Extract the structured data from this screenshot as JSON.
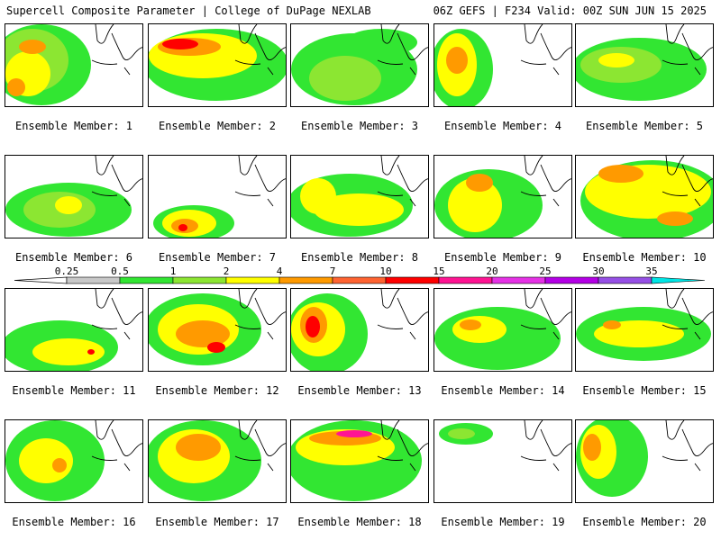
{
  "header": {
    "title_left": "Supercell Composite Parameter | College of DuPage NEXLAB",
    "title_right": "06Z GEFS | F234 Valid: 00Z SUN JUN 15 2025"
  },
  "colorbar": {
    "labels": [
      "0.25",
      "0.5",
      "1",
      "2",
      "4",
      "7",
      "10",
      "15",
      "20",
      "25",
      "30",
      "35"
    ],
    "colors": [
      "#c8c8c8",
      "#32e632",
      "#8ce632",
      "#ffff00",
      "#ff9a00",
      "#ff6432",
      "#ff0000",
      "#ff1493",
      "#e632e6",
      "#b400e6",
      "#9650e6",
      "#00e6e6"
    ]
  },
  "panels": [
    {
      "label": "Ensemble Member: 1"
    },
    {
      "label": "Ensemble Member: 2"
    },
    {
      "label": "Ensemble Member: 3"
    },
    {
      "label": "Ensemble Member: 4"
    },
    {
      "label": "Ensemble Member: 5"
    },
    {
      "label": "Ensemble Member: 6"
    },
    {
      "label": "Ensemble Member: 7"
    },
    {
      "label": "Ensemble Member: 8"
    },
    {
      "label": "Ensemble Member: 9"
    },
    {
      "label": "Ensemble Member: 10"
    },
    {
      "label": "Ensemble Member: 11"
    },
    {
      "label": "Ensemble Member: 12"
    },
    {
      "label": "Ensemble Member: 13"
    },
    {
      "label": "Ensemble Member: 14"
    },
    {
      "label": "Ensemble Member: 15"
    },
    {
      "label": "Ensemble Member: 16"
    },
    {
      "label": "Ensemble Member: 17"
    },
    {
      "label": "Ensemble Member: 18"
    },
    {
      "label": "Ensemble Member: 19"
    },
    {
      "label": "Ensemble Member: 20"
    }
  ]
}
